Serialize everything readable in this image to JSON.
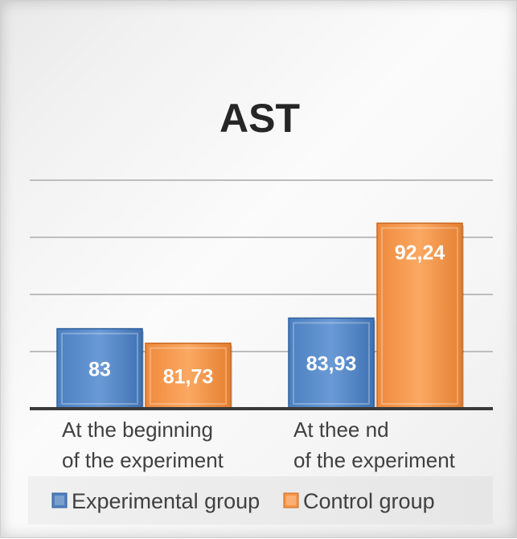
{
  "chart_data": {
    "type": "bar",
    "title": "AST",
    "categories": [
      [
        "At the beginning",
        "of the experiment"
      ],
      [
        "At thee nd",
        "of the experiment"
      ]
    ],
    "series": [
      {
        "name": "Experimental group",
        "values": [
          83,
          83.93
        ],
        "labels": [
          "83",
          "83,93"
        ],
        "color": "#4f81bd"
      },
      {
        "name": "Control group",
        "values": [
          81.73,
          92.24
        ],
        "labels": [
          "81,73",
          "92,24"
        ],
        "color": "#f79646"
      }
    ],
    "ylim": [
      76,
      96
    ],
    "gridlines": [
      81,
      86,
      91,
      96
    ],
    "grid": true,
    "legend": "bottom"
  }
}
